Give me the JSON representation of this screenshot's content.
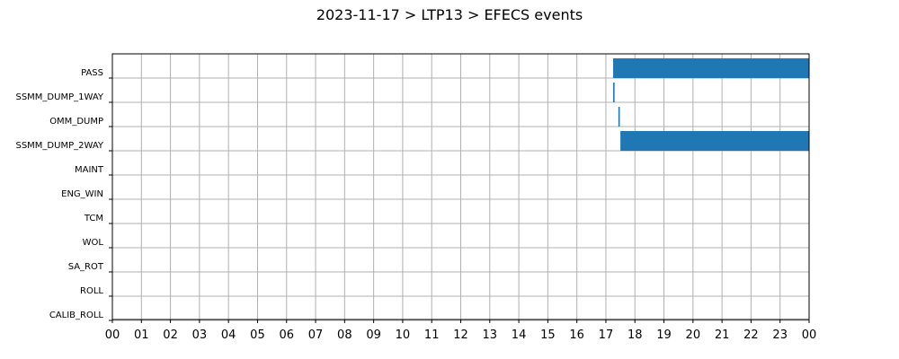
{
  "chart_data": {
    "type": "gantt",
    "title": "2023-11-17 > LTP13 > EFECS events",
    "xlabel": "",
    "ylabel": "",
    "x_range_hours": [
      0,
      24
    ],
    "x_tick_labels": [
      "00",
      "01",
      "02",
      "03",
      "04",
      "05",
      "06",
      "07",
      "08",
      "09",
      "10",
      "11",
      "12",
      "13",
      "14",
      "15",
      "16",
      "17",
      "18",
      "19",
      "20",
      "21",
      "22",
      "23",
      "00"
    ],
    "categories": [
      "PASS",
      "SSMM_DUMP_1WAY",
      "OMM_DUMP",
      "SSMM_DUMP_2WAY",
      "MAINT",
      "ENG_WIN",
      "TCM",
      "WOL",
      "SA_ROT",
      "ROLL",
      "CALIB_ROLL"
    ],
    "events": [
      {
        "category": "PASS",
        "start_hour": 17.25,
        "end_hour": 24.0
      },
      {
        "category": "SSMM_DUMP_1WAY",
        "start_hour": 17.25,
        "end_hour": 17.3
      },
      {
        "category": "OMM_DUMP",
        "start_hour": 17.43,
        "end_hour": 17.48
      },
      {
        "category": "SSMM_DUMP_2WAY",
        "start_hour": 17.5,
        "end_hour": 24.0
      }
    ],
    "bar_color": "#1f77b4",
    "grid": true
  }
}
